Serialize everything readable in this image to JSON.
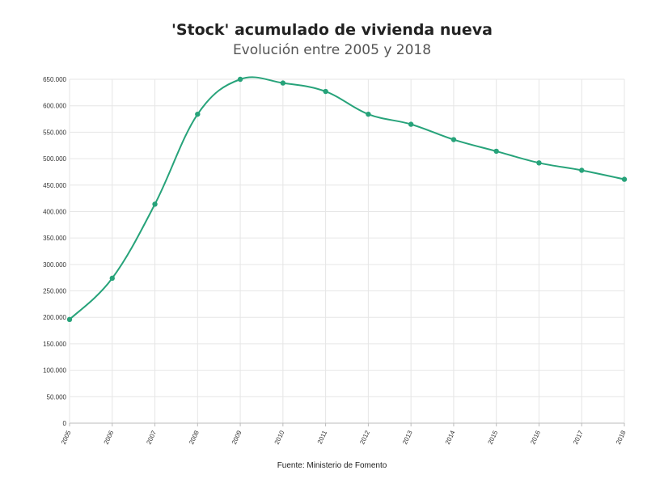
{
  "title": "'Stock' acumulado de vivienda nueva",
  "subtitle": "Evolución entre 2005 y 2018",
  "source": "Fuente: Ministerio de Fomento",
  "colors": {
    "line": "#27a37a",
    "grid": "#e6e6e6",
    "axis": "#bbbbbb"
  },
  "chart_data": {
    "type": "line",
    "title": "'Stock' acumulado de vivienda nueva",
    "subtitle": "Evolución entre 2005 y 2018",
    "xlabel": "",
    "ylabel": "",
    "x": [
      "2005",
      "2006",
      "2007",
      "2008",
      "2009",
      "2010",
      "2011",
      "2012",
      "2013",
      "2014",
      "2015",
      "2016",
      "2017",
      "2018"
    ],
    "series": [
      {
        "values": [
          196000,
          274000,
          414000,
          584000,
          650000,
          643000,
          627000,
          584000,
          565000,
          536000,
          514000,
          492000,
          478000,
          461000
        ]
      }
    ],
    "ylim": [
      0,
      650000
    ],
    "yticks": [
      0,
      50000,
      100000,
      150000,
      200000,
      250000,
      300000,
      350000,
      400000,
      450000,
      500000,
      550000,
      600000,
      650000
    ],
    "ytick_labels": [
      "0",
      "50.000",
      "100.000",
      "150.000",
      "200.000",
      "250.000",
      "300.000",
      "350.000",
      "400.000",
      "450.000",
      "500.000",
      "550.000",
      "600.000",
      "650.000"
    ],
    "grid": true,
    "legend": "none"
  }
}
